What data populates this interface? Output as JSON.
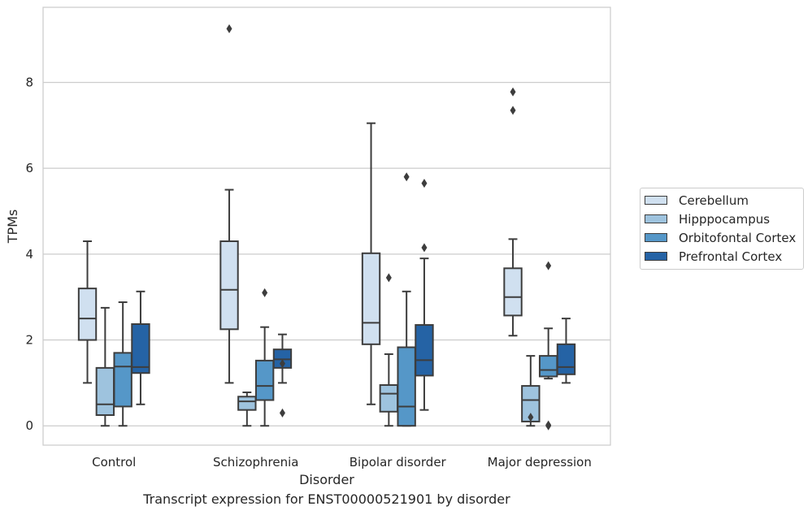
{
  "chart_data": {
    "type": "box",
    "title": "Transcript expression for ENST00000521901 by disorder",
    "xlabel": "Disorder",
    "ylabel": "TPMs",
    "ylim": [
      -0.45,
      9.75
    ],
    "yticks": [
      0,
      2,
      4,
      6,
      8
    ],
    "grid": "horizontal",
    "legend_position": "right",
    "categories": [
      "Control",
      "Schizophrenia",
      "Bipolar disorder",
      "Major depression"
    ],
    "series": [
      {
        "name": "Cerebellum",
        "color": "#d0e0f0",
        "boxes": [
          {
            "whisker_low": 1.0,
            "q1": 2.0,
            "median": 2.5,
            "q3": 3.2,
            "whisker_high": 4.3,
            "outliers": []
          },
          {
            "whisker_low": 1.0,
            "q1": 2.25,
            "median": 3.17,
            "q3": 4.3,
            "whisker_high": 5.5,
            "outliers": [
              9.25
            ]
          },
          {
            "whisker_low": 0.5,
            "q1": 1.9,
            "median": 2.4,
            "q3": 4.02,
            "whisker_high": 7.05,
            "outliers": []
          },
          {
            "whisker_low": 2.1,
            "q1": 2.57,
            "median": 3.0,
            "q3": 3.67,
            "whisker_high": 4.35,
            "outliers": [
              7.35,
              7.78
            ]
          }
        ]
      },
      {
        "name": "Hipppocampus",
        "color": "#9ec3de",
        "boxes": [
          {
            "whisker_low": 0.0,
            "q1": 0.25,
            "median": 0.5,
            "q3": 1.35,
            "whisker_high": 2.75,
            "outliers": []
          },
          {
            "whisker_low": 0.0,
            "q1": 0.37,
            "median": 0.57,
            "q3": 0.68,
            "whisker_high": 0.78,
            "outliers": []
          },
          {
            "whisker_low": 0.0,
            "q1": 0.33,
            "median": 0.75,
            "q3": 0.95,
            "whisker_high": 1.67,
            "outliers": [
              3.45
            ]
          },
          {
            "whisker_low": 0.0,
            "q1": 0.1,
            "median": 0.6,
            "q3": 0.93,
            "whisker_high": 1.63,
            "outliers": [
              0.2
            ]
          }
        ]
      },
      {
        "name": "Orbitofontal Cortex",
        "color": "#5597c8",
        "boxes": [
          {
            "whisker_low": 0.0,
            "q1": 0.45,
            "median": 1.38,
            "q3": 1.7,
            "whisker_high": 2.88,
            "outliers": []
          },
          {
            "whisker_low": 0.0,
            "q1": 0.6,
            "median": 0.93,
            "q3": 1.52,
            "whisker_high": 2.3,
            "outliers": [
              3.1
            ]
          },
          {
            "whisker_low": 0.0,
            "q1": 0.0,
            "median": 0.45,
            "q3": 1.83,
            "whisker_high": 3.13,
            "outliers": [
              5.8
            ]
          },
          {
            "whisker_low": 1.1,
            "q1": 1.15,
            "median": 1.3,
            "q3": 1.63,
            "whisker_high": 2.27,
            "outliers": [
              0.0,
              0.02,
              3.73
            ]
          }
        ]
      },
      {
        "name": "Prefrontal Cortex",
        "color": "#2563a5",
        "boxes": [
          {
            "whisker_low": 0.5,
            "q1": 1.23,
            "median": 1.37,
            "q3": 2.37,
            "whisker_high": 3.13,
            "outliers": []
          },
          {
            "whisker_low": 1.0,
            "q1": 1.35,
            "median": 1.55,
            "q3": 1.78,
            "whisker_high": 2.13,
            "outliers": [
              0.3,
              1.45
            ]
          },
          {
            "whisker_low": 0.37,
            "q1": 1.17,
            "median": 1.53,
            "q3": 2.35,
            "whisker_high": 3.9,
            "outliers": [
              4.15,
              5.65
            ]
          },
          {
            "whisker_low": 1.0,
            "q1": 1.2,
            "median": 1.37,
            "q3": 1.9,
            "whisker_high": 2.5,
            "outliers": []
          }
        ]
      }
    ]
  }
}
